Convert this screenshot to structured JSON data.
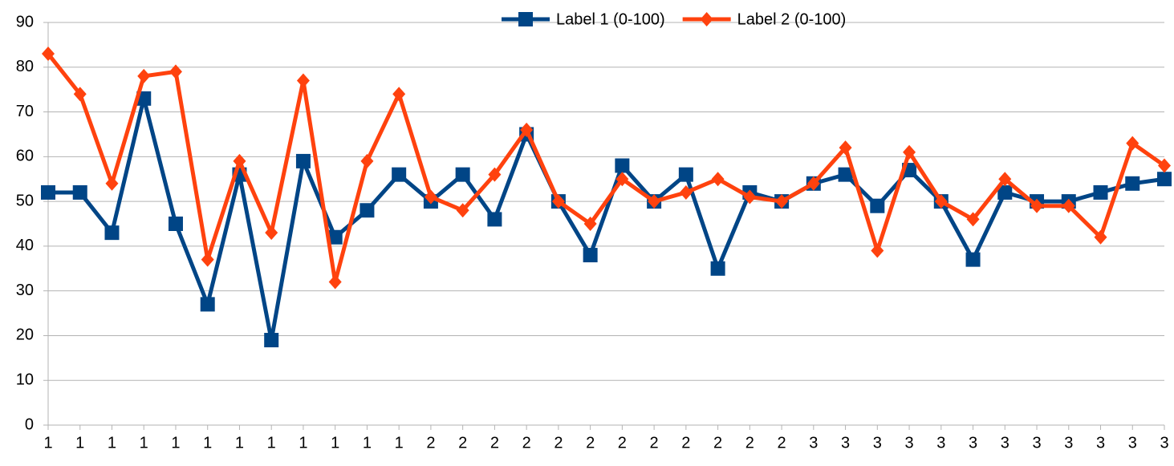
{
  "chart_data": {
    "type": "line",
    "categories": [
      "1",
      "1",
      "1",
      "1",
      "1",
      "1",
      "1",
      "1",
      "1",
      "1",
      "1",
      "1",
      "2",
      "2",
      "2",
      "2",
      "2",
      "2",
      "2",
      "2",
      "2",
      "2",
      "2",
      "2",
      "3",
      "3",
      "3",
      "3",
      "3",
      "3",
      "3",
      "3",
      "3",
      "3",
      "3",
      "3"
    ],
    "series": [
      {
        "name": "Label 1 (0-100)",
        "color": "#004586",
        "marker": "square",
        "values": [
          52,
          52,
          43,
          73,
          45,
          27,
          56,
          19,
          59,
          42,
          48,
          56,
          50,
          56,
          46,
          65,
          50,
          38,
          58,
          50,
          56,
          35,
          52,
          50,
          54,
          56,
          49,
          57,
          50,
          37,
          52,
          50,
          50,
          52,
          54,
          55
        ]
      },
      {
        "name": "Label 2 (0-100)",
        "color": "#ff420e",
        "marker": "diamond",
        "values": [
          83,
          74,
          54,
          78,
          79,
          37,
          59,
          43,
          77,
          32,
          59,
          74,
          51,
          48,
          56,
          66,
          50,
          45,
          55,
          50,
          52,
          55,
          51,
          50,
          54,
          62,
          39,
          61,
          50,
          46,
          55,
          49,
          49,
          42,
          63,
          58
        ]
      }
    ],
    "ylim": [
      0,
      90
    ],
    "yticks": [
      0,
      10,
      20,
      30,
      40,
      50,
      60,
      70,
      80,
      90
    ],
    "grid": true,
    "legend": "top"
  }
}
